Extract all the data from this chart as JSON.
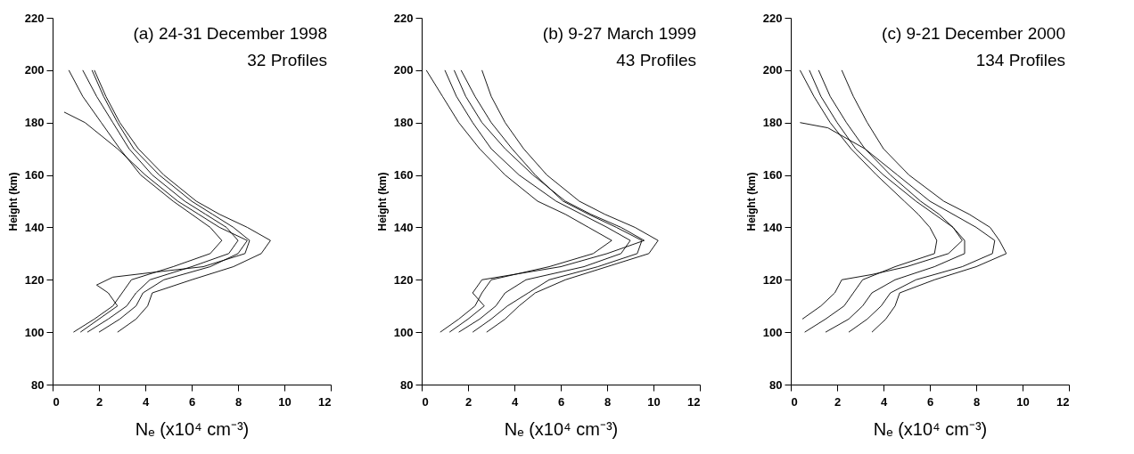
{
  "chart_data": [
    {
      "type": "line",
      "title": "(a) 24-31 December 1998",
      "subtitle": "32 Profiles",
      "xlabel": "Nₑ (x10⁴ cm⁻³)",
      "ylabel": "Height (km)",
      "xlim": [
        0,
        12
      ],
      "ylim": [
        80,
        220
      ],
      "xticks": [
        0,
        2,
        4,
        6,
        8,
        10,
        12
      ],
      "yticks": [
        80,
        100,
        120,
        140,
        160,
        180,
        200,
        220
      ],
      "series": [
        {
          "color": "#000000",
          "x": [
            1.5,
            2.4,
            3.2,
            3.6,
            4.2,
            6.0,
            7.6,
            8.0,
            7.5,
            6.6,
            5.7,
            4.3,
            3.3,
            2.6,
            1.9,
            1.3
          ],
          "values": [
            100,
            105,
            110,
            115,
            120,
            125,
            130,
            135,
            140,
            145,
            150,
            160,
            170,
            180,
            190,
            200
          ]
        },
        {
          "color": "#000000",
          "x": [
            2.8,
            3.6,
            4.1,
            4.3,
            6.0,
            7.8,
            9.0,
            9.4,
            8.4,
            7.2,
            6.2,
            4.8,
            3.7,
            2.9,
            2.3,
            1.8
          ],
          "values": [
            100,
            105,
            110,
            115,
            120,
            125,
            130,
            135,
            140,
            145,
            150,
            160,
            170,
            180,
            190,
            200
          ]
        },
        {
          "color": "#000000",
          "x": [
            0.9,
            1.8,
            2.6,
            3.0,
            3.4,
            5.2,
            6.8,
            7.3,
            6.8,
            6.0,
            5.2,
            3.8,
            2.9,
            2.1,
            1.3,
            0.7
          ],
          "values": [
            100,
            105,
            110,
            115,
            120,
            125,
            130,
            135,
            140,
            145,
            150,
            160,
            170,
            180,
            190,
            200
          ]
        },
        {
          "color": "#000000",
          "x": [
            1.2,
            2.0,
            2.8,
            2.4,
            1.9,
            2.6,
            4.5,
            6.5,
            8.3,
            8.5,
            7.8,
            6.9,
            6.0,
            4.6,
            3.5,
            2.8,
            2.2,
            1.7
          ],
          "values": [
            100,
            105,
            110,
            115,
            118,
            121,
            123,
            125,
            130,
            135,
            140,
            145,
            150,
            160,
            170,
            180,
            190,
            200
          ]
        },
        {
          "color": "#000000",
          "x": [
            2.0,
            2.9,
            3.6,
            3.9,
            4.8,
            6.8,
            8.0,
            8.4,
            7.2,
            6.3,
            5.4,
            4.0,
            2.8,
            1.4,
            0.5
          ],
          "values": [
            100,
            105,
            110,
            115,
            120,
            125,
            130,
            135,
            140,
            145,
            150,
            160,
            170,
            180,
            184
          ]
        }
      ]
    },
    {
      "type": "line",
      "title": "(b) 9-27 March 1999",
      "subtitle": "43 Profiles",
      "xlabel": "Nₑ (x10⁴ cm⁻³)",
      "ylabel": "Height (km)",
      "xlim": [
        0,
        12
      ],
      "ylim": [
        80,
        220
      ],
      "xticks": [
        0,
        2,
        4,
        6,
        8,
        10,
        12
      ],
      "yticks": [
        80,
        100,
        120,
        140,
        160,
        180,
        200,
        220
      ],
      "series": [
        {
          "color": "#000000",
          "x": [
            1.6,
            2.5,
            3.2,
            3.6,
            4.5,
            7.0,
            8.6,
            9.0,
            8.0,
            6.9,
            5.8,
            4.2,
            3.0,
            2.2,
            1.5,
            1.0
          ],
          "values": [
            100,
            105,
            110,
            115,
            120,
            125,
            130,
            135,
            140,
            145,
            150,
            160,
            170,
            180,
            190,
            200
          ]
        },
        {
          "color": "#000000",
          "x": [
            2.8,
            3.6,
            4.2,
            4.9,
            6.2,
            8.0,
            9.8,
            10.2,
            9.2,
            7.9,
            6.8,
            5.4,
            4.4,
            3.6,
            3.0,
            2.6
          ],
          "values": [
            100,
            105,
            110,
            115,
            120,
            125,
            130,
            135,
            140,
            145,
            150,
            160,
            170,
            180,
            190,
            200
          ]
        },
        {
          "color": "#000000",
          "x": [
            0.8,
            1.6,
            2.3,
            2.6,
            3.0,
            5.5,
            7.4,
            8.2,
            7.2,
            6.2,
            5.0,
            3.6,
            2.5,
            1.6,
            0.9,
            0.2
          ],
          "values": [
            100,
            105,
            110,
            115,
            120,
            125,
            130,
            135,
            140,
            145,
            150,
            160,
            170,
            180,
            190,
            200
          ]
        },
        {
          "color": "#000000",
          "x": [
            1.2,
            2.0,
            2.7,
            2.2,
            2.6,
            6.0,
            8.0,
            9.6,
            8.6,
            7.3,
            6.2,
            4.8,
            3.6,
            2.6,
            1.9,
            1.4
          ],
          "values": [
            100,
            105,
            110,
            115,
            120,
            125,
            130,
            135,
            140,
            145,
            150,
            160,
            170,
            180,
            190,
            200
          ]
        },
        {
          "color": "#000000",
          "x": [
            2.2,
            3.0,
            3.7,
            4.6,
            5.5,
            7.6,
            9.3,
            9.5,
            8.4,
            7.2,
            6.1,
            4.9,
            3.9,
            3.0,
            2.3,
            1.7
          ],
          "values": [
            100,
            105,
            110,
            115,
            120,
            125,
            130,
            135,
            140,
            145,
            150,
            160,
            170,
            180,
            190,
            200
          ]
        }
      ]
    },
    {
      "type": "line",
      "title": "(c) 9-21 December 2000",
      "subtitle": "134 Profiles",
      "xlabel": "Nₑ (x10⁴ cm⁻³)",
      "ylabel": "Height (km)",
      "xlim": [
        0,
        12
      ],
      "ylim": [
        80,
        220
      ],
      "xticks": [
        0,
        2,
        4,
        6,
        8,
        10,
        12
      ],
      "yticks": [
        80,
        100,
        120,
        140,
        160,
        180,
        200,
        220
      ],
      "series": [
        {
          "color": "#000000",
          "x": [
            1.5,
            2.5,
            3.1,
            3.5,
            4.5,
            6.2,
            7.5,
            7.5,
            7.0,
            6.4,
            5.6,
            4.3,
            3.2,
            2.4,
            1.7,
            1.2
          ],
          "values": [
            100,
            105,
            110,
            115,
            120,
            125,
            130,
            135,
            140,
            145,
            150,
            160,
            170,
            180,
            190,
            200
          ]
        },
        {
          "color": "#000000",
          "x": [
            3.5,
            4.1,
            4.5,
            4.7,
            6.2,
            8.0,
            9.3,
            9.0,
            8.6,
            7.7,
            6.6,
            5.1,
            4.0,
            3.3,
            2.7,
            2.2
          ],
          "values": [
            100,
            105,
            110,
            115,
            120,
            125,
            130,
            135,
            140,
            145,
            150,
            160,
            170,
            180,
            190,
            200
          ]
        },
        {
          "color": "#000000",
          "x": [
            0.6,
            1.5,
            2.3,
            2.7,
            3.1,
            4.5,
            6.2,
            6.3,
            6.0,
            5.5,
            4.9,
            3.7,
            2.6,
            1.7,
            1.0,
            0.4
          ],
          "values": [
            100,
            105,
            110,
            115,
            120,
            125,
            130,
            135,
            140,
            145,
            150,
            160,
            170,
            180,
            190,
            200
          ]
        },
        {
          "color": "#000000",
          "x": [
            0.5,
            1.3,
            1.9,
            2.2,
            3.5,
            5.0,
            6.8,
            7.4,
            7.0,
            6.2,
            5.4,
            4.0,
            2.8,
            2.0,
            1.3,
            0.8
          ],
          "values": [
            105,
            110,
            115,
            120,
            122,
            125,
            130,
            135,
            140,
            145,
            150,
            160,
            170,
            180,
            190,
            200
          ]
        },
        {
          "color": "#000000",
          "x": [
            2.5,
            3.3,
            3.9,
            4.3,
            5.4,
            7.4,
            8.7,
            8.8,
            8.0,
            7.0,
            6.0,
            4.6,
            3.2,
            1.6,
            0.4
          ],
          "values": [
            100,
            105,
            110,
            115,
            120,
            125,
            130,
            135,
            140,
            145,
            150,
            160,
            170,
            178,
            180
          ]
        }
      ]
    }
  ]
}
